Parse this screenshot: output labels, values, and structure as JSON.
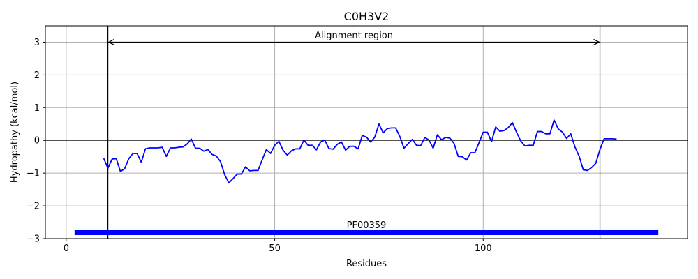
{
  "chart_data": {
    "type": "line",
    "title": "C0H3V2",
    "xlabel": "Residues",
    "ylabel": "Hydropathy (kcal/mol)",
    "xlim": [
      -5,
      149
    ],
    "ylim": [
      -3,
      3.5
    ],
    "xticks": [
      0,
      50,
      100
    ],
    "yticks": [
      -3,
      -2,
      -1,
      0,
      1,
      2,
      3
    ],
    "ytick_labels": [
      "−3",
      "−2",
      "−1",
      "0",
      "1",
      "2",
      "3"
    ],
    "grid": true,
    "zero_line": true,
    "colors": {
      "series": "#0000ff",
      "domain": "#0000ff",
      "grid": "#b0b0b0",
      "lines": "#000000"
    },
    "series": [
      {
        "x": [
          9,
          10,
          11,
          12,
          13,
          14,
          15,
          16,
          17,
          18,
          19,
          20,
          21,
          22,
          23,
          24,
          25,
          26,
          27,
          28,
          29,
          30,
          31,
          32,
          33,
          34,
          35,
          36,
          37,
          38,
          39,
          40,
          41,
          42,
          43,
          44,
          45,
          46,
          47,
          48,
          49,
          50,
          51,
          52,
          53,
          54,
          55,
          56,
          57,
          58,
          59,
          60,
          61,
          62,
          63,
          64,
          65,
          66,
          67,
          68,
          69,
          70,
          71,
          72,
          73,
          74,
          75,
          76,
          77,
          78,
          79,
          80,
          81,
          82,
          83,
          84,
          85,
          86,
          87,
          88,
          89,
          90,
          91,
          92,
          93,
          94,
          95,
          96,
          97,
          98,
          99,
          100,
          101,
          102,
          103,
          104,
          105,
          106,
          107,
          108,
          109,
          110,
          111,
          112,
          113,
          114,
          115,
          116,
          117,
          118,
          119,
          120,
          121,
          122,
          123,
          124,
          125,
          126,
          127,
          128,
          129,
          130,
          131,
          132
        ],
        "values": [
          -0.55,
          -0.85,
          -0.57,
          -0.56,
          -0.95,
          -0.87,
          -0.56,
          -0.4,
          -0.4,
          -0.67,
          -0.26,
          -0.23,
          -0.23,
          -0.23,
          -0.21,
          -0.49,
          -0.23,
          -0.23,
          -0.21,
          -0.2,
          -0.11,
          0.04,
          -0.24,
          -0.24,
          -0.33,
          -0.28,
          -0.43,
          -0.48,
          -0.65,
          -1.05,
          -1.3,
          -1.17,
          -1.03,
          -1.03,
          -0.81,
          -0.93,
          -0.92,
          -0.92,
          -0.59,
          -0.28,
          -0.4,
          -0.15,
          -0.03,
          -0.3,
          -0.45,
          -0.32,
          -0.26,
          -0.26,
          0.01,
          -0.15,
          -0.15,
          -0.29,
          -0.05,
          0.01,
          -0.25,
          -0.27,
          -0.12,
          -0.05,
          -0.3,
          -0.18,
          -0.18,
          -0.26,
          0.15,
          0.1,
          -0.05,
          0.1,
          0.5,
          0.23,
          0.36,
          0.38,
          0.38,
          0.12,
          -0.24,
          -0.1,
          0.03,
          -0.15,
          -0.16,
          0.09,
          0.01,
          -0.24,
          0.17,
          0.02,
          0.09,
          0.07,
          -0.09,
          -0.49,
          -0.5,
          -0.6,
          -0.38,
          -0.38,
          -0.07,
          0.25,
          0.25,
          -0.04,
          0.41,
          0.28,
          0.3,
          0.39,
          0.54,
          0.25,
          -0.02,
          -0.17,
          -0.15,
          -0.15,
          0.27,
          0.27,
          0.2,
          0.2,
          0.62,
          0.35,
          0.25,
          0.06,
          0.2,
          -0.2,
          -0.48,
          -0.9,
          -0.92,
          -0.83,
          -0.7,
          -0.28,
          0.05,
          0.05,
          0.05,
          0.04
        ]
      }
    ],
    "vlines": [
      10,
      128
    ],
    "annotations": [
      {
        "text": "Alignment region",
        "x": 69,
        "y": 3.2,
        "arrow_from": 10,
        "arrow_to": 128,
        "arrow_y": 3
      },
      {
        "text": "PF00359",
        "x": 72,
        "y": -2.6,
        "bar_from": 2,
        "bar_to": 142,
        "bar_y": -2.82
      }
    ]
  }
}
